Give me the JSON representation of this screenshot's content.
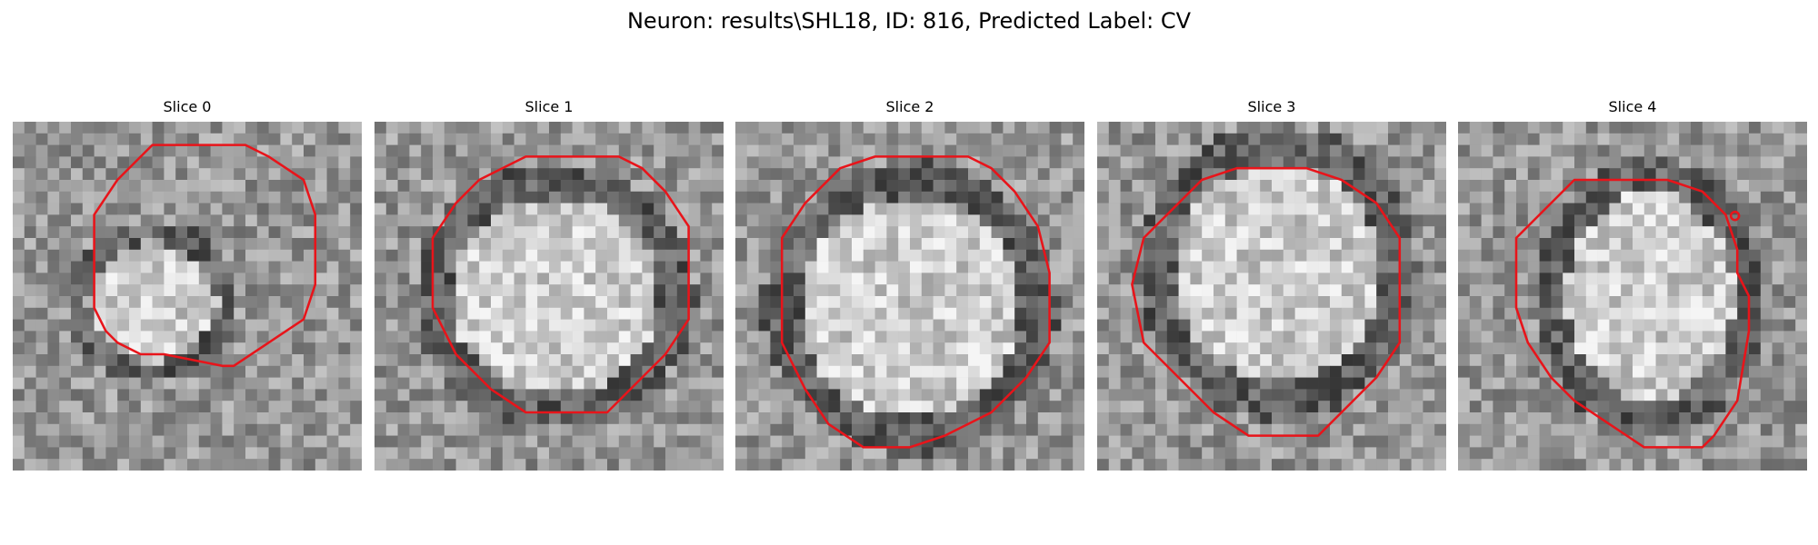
{
  "title": "Neuron: results\\SHL18, ID: 816, Predicted Label: CV",
  "panels": [
    {
      "label": "Slice 0"
    },
    {
      "label": "Slice 1"
    },
    {
      "label": "Slice 2"
    },
    {
      "label": "Slice 3"
    },
    {
      "label": "Slice 4"
    }
  ],
  "colors": {
    "background": "#ffffff",
    "contour": "#e8141a",
    "colormap": "grayscale"
  }
}
